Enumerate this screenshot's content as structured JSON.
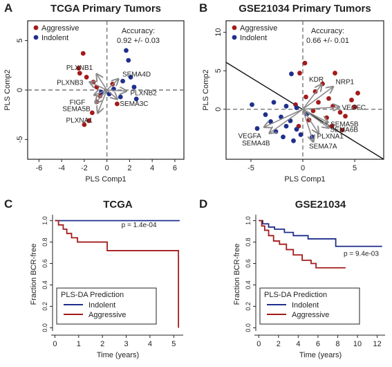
{
  "chart_data": [
    {
      "panel": "A",
      "type": "scatter",
      "title": "TCGA Primary Tumors",
      "xlabel": "PLS Comp1",
      "ylabel": "PLS Comp2",
      "xlim": [
        -7,
        6.8
      ],
      "ylim": [
        -7,
        7
      ],
      "xticks": [
        "-6",
        "-4",
        "-2",
        "0",
        "2",
        "4",
        "6"
      ],
      "yticks": [
        "-5",
        "0",
        "5"
      ],
      "legend": [
        "Aggressive",
        "Indolent"
      ],
      "legend_position": "top-left",
      "accuracy_label": "Accuracy:",
      "accuracy_value": "0.92 +/- 0.03",
      "colors": {
        "aggressive": "#a31b1b",
        "indolent": "#1f2f8c",
        "arrows": "#8a8a8a"
      },
      "series": [
        {
          "name": "Aggressive",
          "points": [
            [
              -2.5,
              2.2
            ],
            [
              -2.4,
              1.7
            ],
            [
              -1.8,
              1.3
            ],
            [
              -1.2,
              0.8
            ],
            [
              -0.9,
              0.3
            ],
            [
              -0.6,
              -0.6
            ],
            [
              -0.9,
              -1.2
            ],
            [
              -1.3,
              -2.3
            ],
            [
              -1.6,
              -3.1
            ],
            [
              -2.0,
              -3.5
            ],
            [
              0.5,
              0.6
            ],
            [
              0.9,
              -1.4
            ],
            [
              -2.1,
              3.7
            ]
          ]
        },
        {
          "name": "Indolent",
          "points": [
            [
              1.7,
              4.0
            ],
            [
              1.9,
              3.0
            ],
            [
              2.6,
              -0.9
            ],
            [
              2.4,
              0.3
            ],
            [
              1.4,
              0.9
            ],
            [
              2.1,
              1.3
            ],
            [
              1.2,
              -0.7
            ],
            [
              0.6,
              0.1
            ],
            [
              -0.5,
              -0.2
            ],
            [
              0.2,
              -0.4
            ]
          ]
        }
      ],
      "arrows": [
        {
          "label": "PLXNB1",
          "x": -0.9,
          "y": 1.6
        },
        {
          "label": "PLXNB3",
          "x": -1.5,
          "y": 0.8
        },
        {
          "label": "FIGF",
          "x": -1.1,
          "y": -0.5
        },
        {
          "label": "SEMA5B",
          "x": -1.0,
          "y": -1.3
        },
        {
          "label": "PLXNA1",
          "x": -0.8,
          "y": -2.3
        },
        {
          "label": "SEMA4D",
          "x": 1.0,
          "y": 1.1
        },
        {
          "label": "PLXNB2",
          "x": 1.7,
          "y": -0.1
        },
        {
          "label": "SEMA3C",
          "x": 0.9,
          "y": -0.9
        }
      ]
    },
    {
      "panel": "B",
      "type": "scatter",
      "title": "GSE21034 Primary Tumors",
      "xlabel": "PLS Comp1",
      "ylabel": "PLS Comp2",
      "xlim": [
        -7.4,
        7.8
      ],
      "ylim": [
        -6.5,
        11.5
      ],
      "xticks": [
        "-5",
        "0",
        "5"
      ],
      "yticks": [
        "0",
        "5",
        "10"
      ],
      "legend": [
        "Aggressive",
        "Indolent"
      ],
      "legend_position": "top-left",
      "accuracy_label": "Accuracy:",
      "accuracy_value": "0.66 +/- 0.01",
      "colors": {
        "aggressive": "#a31b1b",
        "indolent": "#1f2f8c",
        "arrows": "#8a8a8a"
      },
      "boundary_line": [
        [
          -7.4,
          6.1
        ],
        [
          7.8,
          -6.5
        ]
      ],
      "series": [
        {
          "name": "Aggressive",
          "points": [
            [
              0.2,
              6.0
            ],
            [
              -0.3,
              4.7
            ],
            [
              3.1,
              4.7
            ],
            [
              1.9,
              3.3
            ],
            [
              5.3,
              2.1
            ],
            [
              4.7,
              1.2
            ],
            [
              5.0,
              0.3
            ],
            [
              2.5,
              1.4
            ],
            [
              1.5,
              0.9
            ],
            [
              2.9,
              0.4
            ],
            [
              1.0,
              -0.2
            ],
            [
              3.6,
              -0.4
            ],
            [
              2.3,
              -1.1
            ],
            [
              0.6,
              -1.4
            ],
            [
              2.8,
              -2.2
            ],
            [
              -0.7,
              0.6
            ],
            [
              1.2,
              2.3
            ],
            [
              3.8,
              -2.7
            ],
            [
              -0.4,
              -2.2
            ],
            [
              4.1,
              -0.9
            ],
            [
              0.3,
              1.6
            ]
          ]
        },
        {
          "name": "Indolent",
          "points": [
            [
              -1.1,
              4.6
            ],
            [
              -4.9,
              0.6
            ],
            [
              -2.8,
              0.9
            ],
            [
              -3.6,
              -0.7
            ],
            [
              -2.1,
              -1.0
            ],
            [
              -4.4,
              -2.5
            ],
            [
              -1.6,
              -2.2
            ],
            [
              -1.2,
              -1.5
            ],
            [
              -0.6,
              -2.6
            ],
            [
              -2.6,
              -2.9
            ],
            [
              -1.9,
              -3.6
            ],
            [
              -0.9,
              -4.1
            ],
            [
              -0.2,
              -3.3
            ],
            [
              -0.6,
              0.2
            ],
            [
              0.9,
              -3.6
            ],
            [
              -3.1,
              -1.6
            ],
            [
              -1.6,
              0.4
            ],
            [
              0.4,
              -0.6
            ]
          ]
        }
      ],
      "arrows": [
        {
          "label": "KDR",
          "x": 1.8,
          "y": 3.2
        },
        {
          "label": "NRP1",
          "x": 2.9,
          "y": 2.9
        },
        {
          "label": "VEGFC",
          "x": 3.5,
          "y": 0.3
        },
        {
          "label": "VEGFA",
          "x": -3.7,
          "y": -2.3
        },
        {
          "label": "SEMA4B",
          "x": -3.2,
          "y": -3.1
        },
        {
          "label": "SEMA5B",
          "x": 2.4,
          "y": -1.7
        },
        {
          "label": "SEMA6B",
          "x": 2.5,
          "y": -2.4
        },
        {
          "label": "PLXNA1",
          "x": 1.5,
          "y": -3.1
        },
        {
          "label": "SEMA7A",
          "x": 1.0,
          "y": -4.2
        }
      ]
    },
    {
      "panel": "C",
      "type": "line",
      "title": "TCGA",
      "xlabel": "Time (years)",
      "ylabel": "Fraction BCR-free",
      "xlim": [
        -0.1,
        5.4
      ],
      "ylim": [
        -0.03,
        1.03
      ],
      "xticks": [
        "0",
        "1",
        "2",
        "3",
        "4",
        "5"
      ],
      "yticks": [
        "0.0",
        "0.2",
        "0.4",
        "0.6",
        "0.8",
        "1.0"
      ],
      "pvalue": "p = 1.4e-04",
      "legend_title": "PLS-DA Prediction",
      "legend_position": "bottom-left",
      "colors": {
        "indolent": "#1f2f8c",
        "aggressive": "#a31b1b"
      },
      "series": [
        {
          "name": "Indolent",
          "steps": [
            [
              0,
              1.0
            ],
            [
              5.25,
              1.0
            ]
          ]
        },
        {
          "name": "Aggressive",
          "steps": [
            [
              0,
              1.0
            ],
            [
              0.15,
              0.96
            ],
            [
              0.35,
              0.92
            ],
            [
              0.5,
              0.88
            ],
            [
              0.7,
              0.84
            ],
            [
              0.95,
              0.8
            ],
            [
              2.2,
              0.72
            ],
            [
              5.2,
              0.72
            ],
            [
              5.2,
              0.0
            ]
          ]
        }
      ]
    },
    {
      "panel": "D",
      "type": "line",
      "title": "GSE21034",
      "xlabel": "Time (years)",
      "ylabel": "Fraction BCR-free",
      "xlim": [
        -0.3,
        12.8
      ],
      "ylim": [
        -0.03,
        1.03
      ],
      "xticks": [
        "0",
        "2",
        "4",
        "6",
        "8",
        "10",
        "12"
      ],
      "yticks": [
        "0.0",
        "0.2",
        "0.4",
        "0.6",
        "0.8",
        "1.0"
      ],
      "pvalue": "p = 9.4e-03",
      "legend_title": "PLS-DA Prediction",
      "legend_position": "bottom-left",
      "colors": {
        "indolent": "#1f2f8c",
        "aggressive": "#a31b1b"
      },
      "series": [
        {
          "name": "Indolent",
          "steps": [
            [
              0,
              1.0
            ],
            [
              0.4,
              0.97
            ],
            [
              1.0,
              0.94
            ],
            [
              1.6,
              0.92
            ],
            [
              2.6,
              0.89
            ],
            [
              3.5,
              0.86
            ],
            [
              5.0,
              0.83
            ],
            [
              7.8,
              0.76
            ],
            [
              12.5,
              0.76
            ]
          ]
        },
        {
          "name": "Aggressive",
          "steps": [
            [
              0,
              1.0
            ],
            [
              0.3,
              0.95
            ],
            [
              0.6,
              0.91
            ],
            [
              1.0,
              0.86
            ],
            [
              1.5,
              0.81
            ],
            [
              2.1,
              0.78
            ],
            [
              2.8,
              0.73
            ],
            [
              3.5,
              0.68
            ],
            [
              4.4,
              0.63
            ],
            [
              5.3,
              0.6
            ],
            [
              5.8,
              0.56
            ],
            [
              8.8,
              0.56
            ]
          ]
        }
      ]
    }
  ]
}
